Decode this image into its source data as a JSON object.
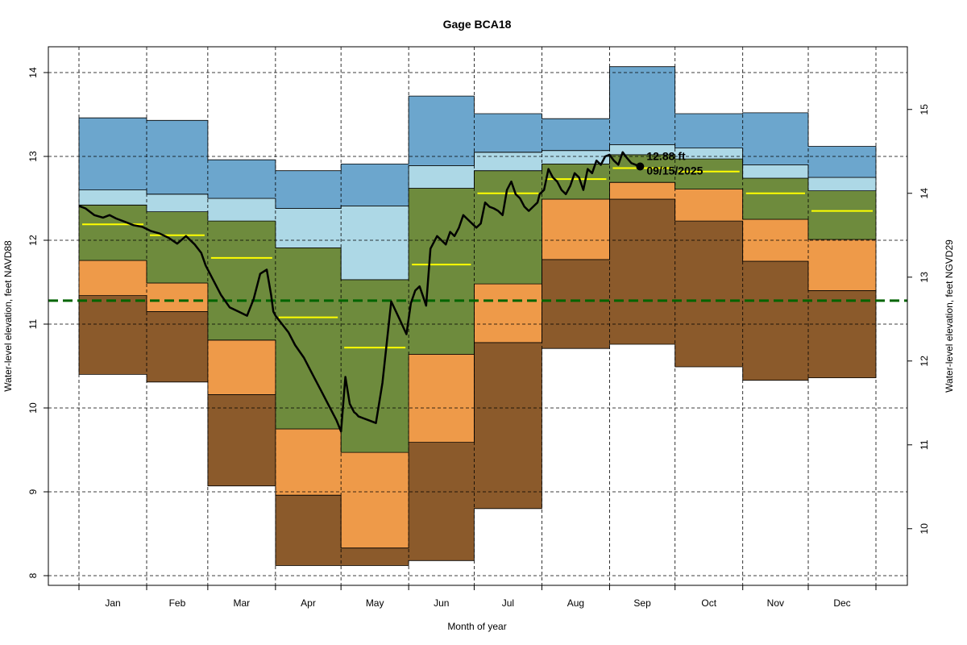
{
  "chart_data": {
    "type": "area",
    "title": "Gage BCA18",
    "xlabel": "Month of year",
    "ylabel_left": "Water-level elevation, feet NAVD88",
    "ylabel_right": "Water-level elevation, feet NGVD29",
    "ylim_left": [
      7.9,
      14.4
    ],
    "yticks_left": [
      "8",
      "9",
      "10",
      "11",
      "12",
      "13",
      "14"
    ],
    "right_axis_offset": 1.44,
    "yticks_right": [
      "10",
      "11",
      "12",
      "13",
      "14",
      "15"
    ],
    "grid": true,
    "months": [
      "Jan",
      "Feb",
      "Mar",
      "Apr",
      "May",
      "Jun",
      "Jul",
      "Aug",
      "Sep",
      "Oct",
      "Nov",
      "Dec"
    ],
    "month_start_days": [
      1,
      32,
      60,
      91,
      121,
      152,
      182,
      213,
      244,
      274,
      305,
      335
    ],
    "year_end_day": 366,
    "band_colors": [
      "#8B5A2B",
      "#EE9A49",
      "#6E8B3D",
      "#ADD8E6",
      "#6CA6CD"
    ],
    "band_edges": {
      "min": [
        10.4,
        10.31,
        9.07,
        8.12,
        8.12,
        8.18,
        8.8,
        10.71,
        10.76,
        10.49,
        10.33,
        10.36
      ],
      "p10": [
        11.34,
        11.15,
        10.16,
        8.96,
        8.33,
        9.59,
        10.78,
        11.77,
        12.49,
        12.23,
        11.75,
        11.4
      ],
      "p25": [
        11.76,
        11.49,
        10.81,
        9.75,
        9.47,
        10.64,
        11.48,
        12.49,
        12.69,
        12.61,
        12.25,
        12.01
      ],
      "p75": [
        12.42,
        12.34,
        12.23,
        11.91,
        11.53,
        12.62,
        12.83,
        12.91,
        13.02,
        12.97,
        12.74,
        12.59
      ],
      "p90": [
        12.6,
        12.55,
        12.5,
        12.38,
        12.41,
        12.89,
        13.05,
        13.07,
        13.14,
        13.1,
        12.9,
        12.75
      ],
      "max": [
        13.46,
        13.43,
        12.96,
        12.83,
        12.91,
        13.72,
        13.51,
        13.45,
        14.07,
        13.51,
        13.52,
        13.12
      ]
    },
    "median": [
      12.19,
      12.06,
      11.79,
      11.08,
      10.72,
      11.71,
      12.56,
      12.73,
      12.86,
      12.82,
      12.56,
      12.35
    ],
    "median_color": "#FFFF00",
    "reference_line": {
      "y": 11.28,
      "color": "#006400"
    },
    "series": [
      {
        "x": [
          1,
          4,
          8,
          12,
          15,
          18,
          22,
          26,
          30,
          34,
          38,
          42,
          46,
          50,
          54,
          57,
          59,
          62,
          66,
          70,
          74,
          78,
          81,
          84,
          87,
          89,
          90,
          91,
          94,
          97,
          100,
          104,
          108,
          112,
          116,
          119,
          121,
          123,
          125,
          127,
          128,
          129,
          131,
          134,
          137,
          140,
          144,
          148,
          151,
          153,
          155,
          157,
          159,
          160,
          162,
          165,
          167,
          169,
          171,
          173,
          175,
          177,
          179,
          181,
          183,
          185,
          187,
          189,
          191,
          193,
          195,
          197,
          199,
          201,
          203,
          205,
          207,
          209,
          211,
          212,
          214,
          216,
          218,
          220,
          222,
          224,
          226,
          228,
          230,
          232,
          234,
          236,
          238,
          240,
          242,
          244,
          246,
          248,
          250,
          252,
          254,
          256,
          258
        ],
        "y": [
          12.41,
          12.38,
          12.3,
          12.27,
          12.3,
          12.26,
          12.22,
          12.18,
          12.16,
          12.11,
          12.08,
          12.03,
          11.96,
          12.05,
          11.95,
          11.85,
          11.7,
          11.55,
          11.35,
          11.2,
          11.15,
          11.1,
          11.3,
          11.6,
          11.65,
          11.35,
          11.15,
          11.1,
          11.0,
          10.9,
          10.75,
          10.6,
          10.4,
          10.2,
          10.0,
          9.85,
          9.72,
          10.37,
          10.05,
          9.95,
          9.93,
          9.9,
          9.88,
          9.85,
          9.82,
          10.3,
          11.27,
          11.05,
          10.88,
          11.25,
          11.4,
          11.45,
          11.3,
          11.22,
          11.9,
          12.05,
          12.0,
          11.95,
          12.1,
          12.05,
          12.15,
          12.3,
          12.25,
          12.2,
          12.15,
          12.2,
          12.45,
          12.4,
          12.38,
          12.35,
          12.3,
          12.6,
          12.7,
          12.55,
          12.5,
          12.4,
          12.35,
          12.4,
          12.45,
          12.55,
          12.6,
          12.85,
          12.75,
          12.7,
          12.6,
          12.55,
          12.65,
          12.8,
          12.75,
          12.6,
          12.85,
          12.8,
          12.95,
          12.9,
          13.0,
          13.02,
          12.95,
          12.9,
          13.05,
          12.98,
          12.92,
          12.9,
          12.88
        ]
      }
    ],
    "current": {
      "x": 258,
      "y": 12.88,
      "value_label": "12.88 ft",
      "date_label": "09/15/2025"
    }
  }
}
